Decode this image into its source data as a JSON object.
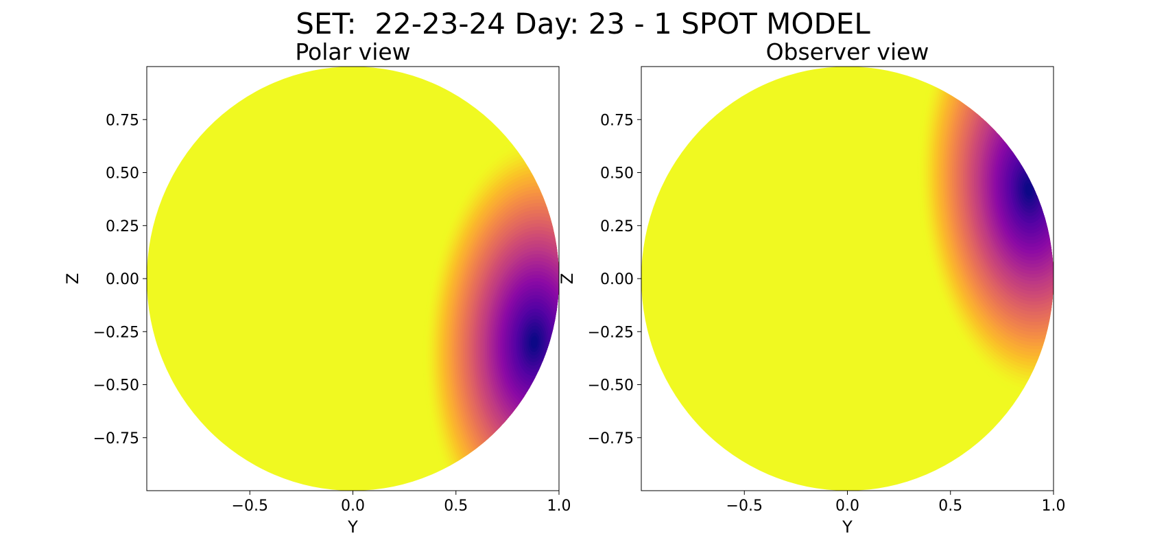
{
  "figure": {
    "title": "SET:  22-23-24 Day: 23 - 1 SPOT MODEL"
  },
  "colors": {
    "photosphere": "#f0f921",
    "colormap": "plasma",
    "colormap_stops": [
      "#0d0887",
      "#5302a3",
      "#8b0aa5",
      "#b83289",
      "#db5c68",
      "#f48849",
      "#febc2a",
      "#f0f921"
    ]
  },
  "chart_data": [
    {
      "type": "heatmap",
      "title": "Polar view",
      "xlabel": "Y",
      "ylabel": "Z",
      "xlim": [
        -1.0,
        1.0
      ],
      "ylim": [
        -1.0,
        1.0
      ],
      "xticks": [
        -0.5,
        0.0,
        0.5,
        1.0
      ],
      "xtick_labels": [
        "−0.5",
        "0.0",
        "0.5",
        "1.0"
      ],
      "yticks": [
        0.75,
        0.5,
        0.25,
        0.0,
        -0.25,
        -0.5,
        -0.75
      ],
      "ytick_labels": [
        "0.75",
        "0.50",
        "0.25",
        "0.00",
        "−0.25",
        "−0.50",
        "−0.75"
      ],
      "grid": false,
      "disk_radius": 1.0,
      "spot": {
        "center_y": 0.88,
        "center_z": -0.3,
        "min_intensity": 0.0
      }
    },
    {
      "type": "heatmap",
      "title": "Observer view",
      "xlabel": "Y",
      "ylabel": "Z",
      "xlim": [
        -1.0,
        1.0
      ],
      "ylim": [
        -1.0,
        1.0
      ],
      "xticks": [
        -0.5,
        0.0,
        0.5,
        1.0
      ],
      "xtick_labels": [
        "−0.5",
        "0.0",
        "0.5",
        "1.0"
      ],
      "yticks": [
        0.75,
        0.5,
        0.25,
        0.0,
        -0.25,
        -0.5,
        -0.75
      ],
      "ytick_labels": [
        "0.75",
        "0.50",
        "0.25",
        "0.00",
        "−0.25",
        "−0.50",
        "−0.75"
      ],
      "grid": false,
      "disk_radius": 1.0,
      "spot": {
        "center_y": 0.88,
        "center_z": 0.42,
        "min_intensity": 0.0
      }
    }
  ]
}
